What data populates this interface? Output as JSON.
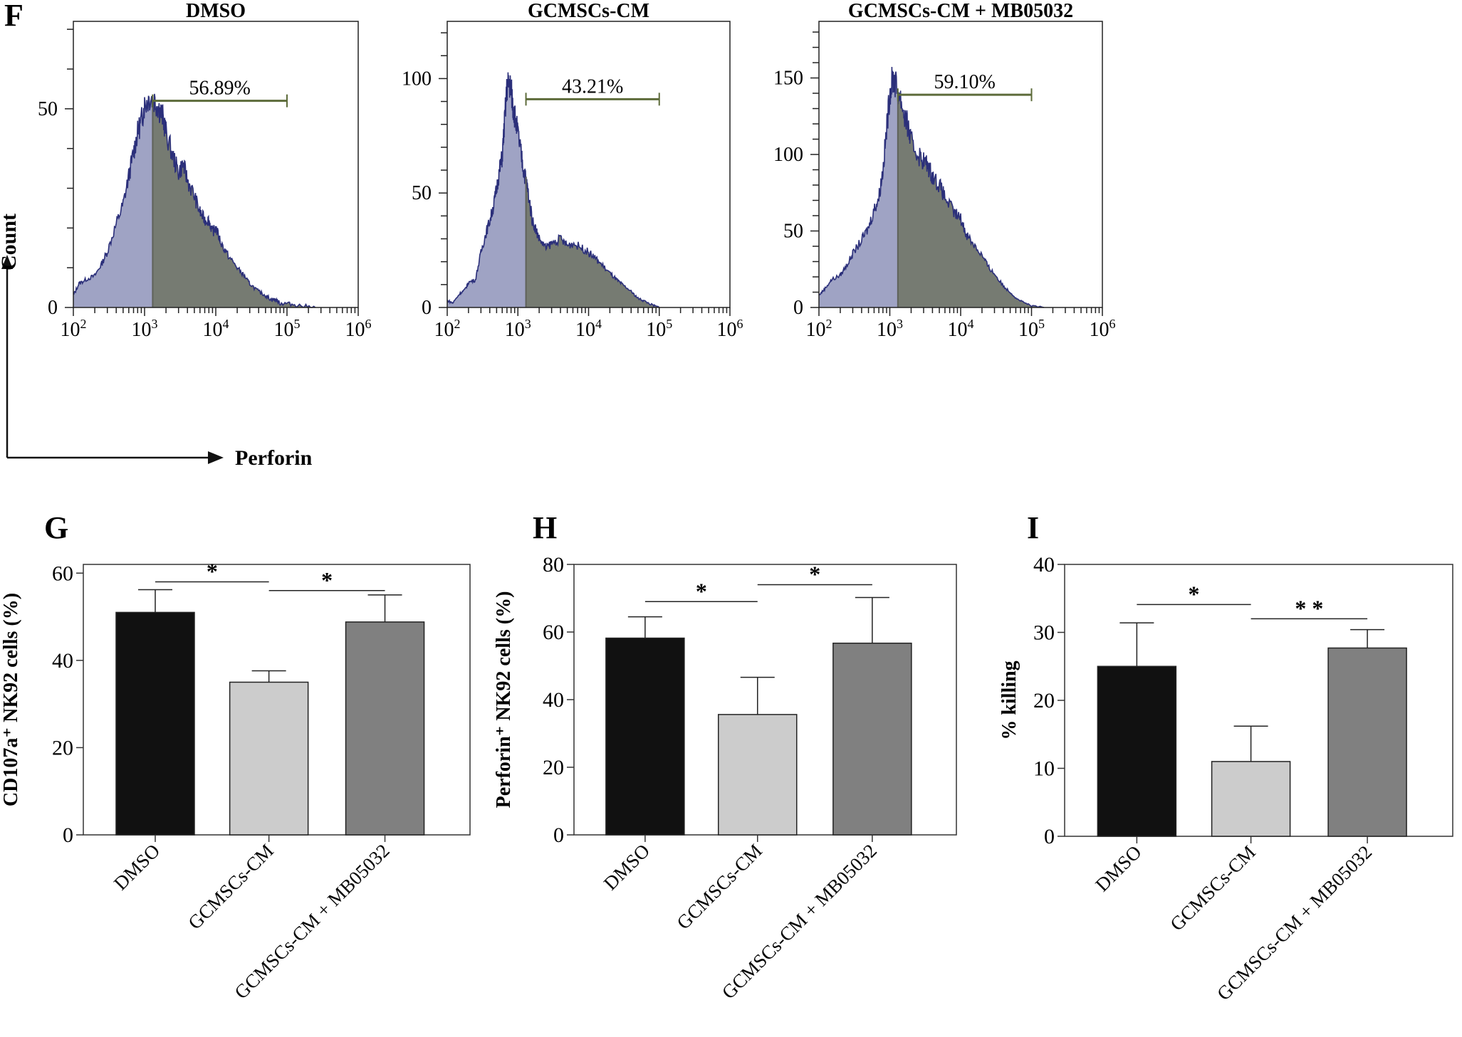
{
  "panel_letters": {
    "F": "F",
    "G": "G",
    "H": "H",
    "I": "I"
  },
  "flow_axes": {
    "y_title": "Count",
    "x_title": "Perforin"
  },
  "chart_data": [
    {
      "type": "area",
      "panel": "F",
      "title": "DMSO",
      "xlabel": "Perforin",
      "ylabel": "Count",
      "xscale": "log",
      "xlim": [
        100,
        1000000
      ],
      "xticks": [
        "10²",
        "10³",
        "10⁴",
        "10⁵",
        "10⁶"
      ],
      "ylim": [
        0,
        72
      ],
      "yticks": [
        0,
        50
      ],
      "ytick_labels": [
        "0",
        "50"
      ],
      "gate": {
        "from": 1300,
        "to": 100000,
        "label": "56.89%",
        "level": 52
      },
      "x": [
        100,
        120,
        150,
        200,
        250,
        300,
        400,
        500,
        600,
        700,
        800,
        900,
        1000,
        1200,
        1400,
        1600,
        1800,
        2000,
        2500,
        3000,
        3500,
        4000,
        5000,
        6000,
        7000,
        8000,
        9000,
        10000,
        12000,
        15000,
        20000,
        25000,
        30000,
        40000,
        50000,
        60000,
        70000,
        80000,
        100000,
        150000,
        250000
      ],
      "y": [
        3,
        6,
        7,
        8,
        11,
        14,
        21,
        26,
        33,
        39,
        44,
        47,
        51,
        53,
        52,
        50,
        48,
        44,
        38,
        34,
        36,
        32,
        28,
        24,
        22,
        22,
        19,
        20,
        16,
        13,
        10,
        8,
        6,
        4,
        3,
        2,
        2,
        1,
        1,
        0.5,
        0
      ]
    },
    {
      "type": "area",
      "panel": "F",
      "title": "GCMSCs-CM",
      "xlabel": "",
      "ylabel": "",
      "xscale": "log",
      "xlim": [
        100,
        1000000
      ],
      "xticks": [
        "10²",
        "10³",
        "10⁴",
        "10⁵",
        "10⁶"
      ],
      "ylim": [
        0,
        125
      ],
      "yticks": [
        0,
        50,
        100
      ],
      "ytick_labels": [
        "0",
        "50",
        "100"
      ],
      "gate": {
        "from": 1300,
        "to": 100000,
        "label": "43.21%",
        "level": 91
      },
      "x": [
        100,
        120,
        150,
        180,
        200,
        250,
        300,
        350,
        400,
        450,
        500,
        550,
        600,
        650,
        700,
        750,
        800,
        850,
        900,
        1000,
        1100,
        1200,
        1300,
        1400,
        1600,
        1800,
        2000,
        2500,
        3000,
        4000,
        5000,
        6000,
        8000,
        10000,
        12000,
        15000,
        20000,
        25000,
        30000,
        40000,
        50000,
        60000,
        80000,
        100000
      ],
      "y": [
        3,
        2,
        6,
        8,
        11,
        12,
        24,
        32,
        38,
        44,
        52,
        60,
        66,
        82,
        96,
        98,
        96,
        88,
        84,
        76,
        68,
        60,
        56,
        50,
        38,
        34,
        30,
        26,
        28,
        30,
        27,
        28,
        26,
        24,
        22,
        19,
        15,
        12,
        10,
        7,
        4,
        3,
        1,
        0
      ]
    },
    {
      "type": "area",
      "panel": "F",
      "title": "GCMSCs-CM + MB05032",
      "xlabel": "",
      "ylabel": "",
      "xscale": "log",
      "xlim": [
        100,
        1000000
      ],
      "xticks": [
        "10²",
        "10³",
        "10⁴",
        "10⁵",
        "10⁶"
      ],
      "ylim": [
        0,
        187
      ],
      "yticks": [
        0,
        50,
        100,
        150
      ],
      "ytick_labels": [
        "0",
        "50",
        "100",
        "150"
      ],
      "gate": {
        "from": 1300,
        "to": 100000,
        "label": "59.10%",
        "level": 139
      },
      "x": [
        100,
        120,
        150,
        200,
        250,
        300,
        400,
        500,
        600,
        700,
        800,
        900,
        1000,
        1100,
        1200,
        1400,
        1600,
        1800,
        2000,
        2500,
        3000,
        3500,
        4000,
        5000,
        6000,
        8000,
        10000,
        12000,
        15000,
        20000,
        25000,
        30000,
        40000,
        50000,
        60000,
        80000,
        100000,
        150000
      ],
      "y": [
        8,
        12,
        18,
        21,
        28,
        35,
        44,
        52,
        64,
        72,
        90,
        116,
        140,
        150,
        146,
        138,
        126,
        118,
        108,
        100,
        96,
        92,
        86,
        80,
        72,
        62,
        58,
        48,
        42,
        34,
        26,
        22,
        14,
        10,
        6,
        3,
        1,
        0
      ]
    },
    {
      "type": "bar",
      "panel": "G",
      "title": "",
      "categories": [
        "DMSO",
        "GCMSCs-CM",
        "GCMSCs-CM + MB05032"
      ],
      "values": [
        51,
        35,
        48.8
      ],
      "errors": [
        5.2,
        2.6,
        6.2
      ],
      "colors": [
        "#111111",
        "#cccccc",
        "#808080"
      ],
      "xlabel": "",
      "ylabel": "CD107a⁺ NK92 cells (%)",
      "ylim": [
        0,
        62
      ],
      "yticks": [
        0,
        20,
        40,
        60
      ],
      "significance": [
        {
          "from": 0,
          "to": 1,
          "label": "*",
          "level": 58
        },
        {
          "from": 1,
          "to": 2,
          "label": "*",
          "level": 56
        }
      ]
    },
    {
      "type": "bar",
      "panel": "H",
      "title": "",
      "categories": [
        "DMSO",
        "GCMSCs-CM",
        "GCMSCs-CM + MB05032"
      ],
      "values": [
        58.2,
        35.6,
        56.7
      ],
      "errors": [
        6.3,
        11,
        13.5
      ],
      "colors": [
        "#111111",
        "#cccccc",
        "#808080"
      ],
      "xlabel": "",
      "ylabel": "Perforin⁺ NK92 cells (%)",
      "ylim": [
        0,
        80
      ],
      "yticks": [
        0,
        20,
        40,
        60,
        80
      ],
      "significance": [
        {
          "from": 0,
          "to": 1,
          "label": "*",
          "level": 69
        },
        {
          "from": 1,
          "to": 2,
          "label": "*",
          "level": 74
        }
      ]
    },
    {
      "type": "bar",
      "panel": "I",
      "title": "",
      "categories": [
        "DMSO",
        "GCMSCs-CM",
        "GCMSCs-CM + MB05032"
      ],
      "values": [
        25,
        11,
        27.7
      ],
      "errors": [
        6.4,
        5.2,
        2.7
      ],
      "colors": [
        "#111111",
        "#cccccc",
        "#808080"
      ],
      "xlabel": "",
      "ylabel": "% killing",
      "ylim": [
        0,
        40
      ],
      "yticks": [
        0,
        10,
        20,
        30,
        40
      ],
      "significance": [
        {
          "from": 0,
          "to": 1,
          "label": "*",
          "level": 34.1
        },
        {
          "from": 1,
          "to": 2,
          "label": "* *",
          "level": 32
        }
      ]
    }
  ],
  "colors": {
    "hist_fill_left": "#9fa3c4",
    "hist_fill_gated": "#767b72",
    "hist_outline": "#2b2f7a",
    "gate_line": "#5d6b3a",
    "axis": "#222222"
  }
}
